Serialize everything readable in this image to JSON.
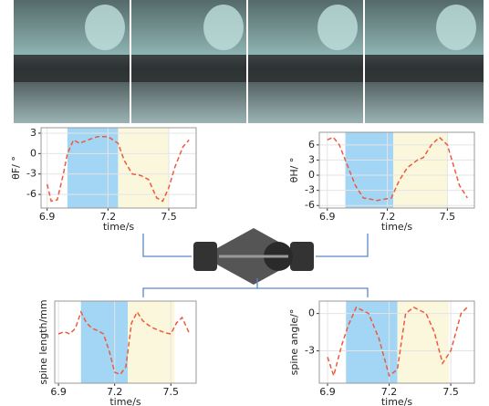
{
  "chart_data": [
    {
      "type": "line",
      "ylabel": "θF/ °",
      "xlabel": "time/s",
      "grid": true,
      "x": [
        6.9,
        6.92,
        6.95,
        6.98,
        7.0,
        7.03,
        7.06,
        7.1,
        7.15,
        7.2,
        7.25,
        7.28,
        7.32,
        7.36,
        7.4,
        7.44,
        7.47,
        7.5,
        7.53,
        7.57,
        7.6
      ],
      "series": [
        {
          "color": "#ee5a3c",
          "values": [
            -4.5,
            -7,
            -6.8,
            -3,
            0,
            2,
            1.5,
            2,
            2.5,
            2.5,
            1.5,
            -1,
            -3,
            -3.2,
            -3.8,
            -6.5,
            -7,
            -5,
            -2,
            1,
            2
          ]
        }
      ],
      "spans": [
        {
          "from": 7.0,
          "to": 7.25,
          "color": "#a3d5f5"
        },
        {
          "from": 7.25,
          "to": 7.5,
          "color": "#fbf7dc"
        }
      ],
      "xlim": [
        6.87,
        7.635
      ],
      "ylim": [
        -8,
        3.8
      ],
      "xticks": [
        6.9,
        7.2,
        7.5
      ],
      "yticks": [
        3,
        0,
        -3,
        -6
      ]
    },
    {
      "type": "line",
      "ylabel": "θH/ °",
      "xlabel": "time/s",
      "grid": true,
      "x": [
        6.9,
        6.93,
        6.96,
        7.0,
        7.04,
        7.08,
        7.15,
        7.22,
        7.26,
        7.3,
        7.35,
        7.38,
        7.42,
        7.46,
        7.5,
        7.53,
        7.56,
        7.6
      ],
      "series": [
        {
          "color": "#ee5a3c",
          "values": [
            7,
            7.5,
            6,
            2,
            -2,
            -4.5,
            -5,
            -4.5,
            -1,
            1.5,
            3,
            3.5,
            6,
            7.5,
            6,
            2,
            -2,
            -4.5
          ]
        }
      ],
      "spans": [
        {
          "from": 6.99,
          "to": 7.23,
          "color": "#a3d5f5"
        },
        {
          "from": 7.23,
          "to": 7.5,
          "color": "#fbf7dc"
        }
      ],
      "xlim": [
        6.86,
        7.635
      ],
      "ylim": [
        -6.5,
        8.5
      ],
      "xticks": [
        6.9,
        7.2,
        7.5
      ],
      "yticks": [
        6,
        3,
        0,
        -3,
        -6
      ]
    },
    {
      "type": "line",
      "ylabel": "spine length/mm",
      "xlabel": "time/s",
      "grid": true,
      "x": [
        6.9,
        6.93,
        6.96,
        6.99,
        7.02,
        7.05,
        7.08,
        7.11,
        7.14,
        7.17,
        7.2,
        7.23,
        7.26,
        7.29,
        7.32,
        7.35,
        7.38,
        7.41,
        7.44,
        7.47,
        7.5,
        7.53,
        7.56,
        7.6
      ],
      "series": [
        {
          "color": "#ee5a3c",
          "values": [
            6,
            6.2,
            6,
            6.5,
            8,
            7,
            6.5,
            6.3,
            6,
            4.5,
            2.5,
            2.3,
            3,
            7,
            8,
            7.2,
            6.8,
            6.5,
            6.3,
            6.1,
            6,
            7,
            7.5,
            6
          ]
        }
      ],
      "spans": [
        {
          "from": 7.02,
          "to": 7.27,
          "color": "#a3d5f5"
        },
        {
          "from": 7.27,
          "to": 7.52,
          "color": "#fbf7dc"
        }
      ],
      "xlim": [
        6.88,
        7.635
      ],
      "ylim": [
        1.5,
        9
      ],
      "xticks": [
        6.9,
        7.2,
        7.5
      ]
    },
    {
      "type": "line",
      "ylabel": "spine angle/°",
      "xlabel": "time/s",
      "grid": true,
      "x": [
        6.9,
        6.93,
        6.97,
        7.0,
        7.04,
        7.1,
        7.15,
        7.2,
        7.24,
        7.28,
        7.32,
        7.38,
        7.42,
        7.46,
        7.5,
        7.55,
        7.58
      ],
      "series": [
        {
          "color": "#ee5a3c",
          "values": [
            -3.5,
            -5,
            -2.5,
            -1,
            0.5,
            0,
            -2,
            -5,
            -4.5,
            0,
            0.5,
            0,
            -1.5,
            -4,
            -3,
            0,
            0.5
          ]
        }
      ],
      "spans": [
        {
          "from": 6.99,
          "to": 7.24,
          "color": "#a3d5f5"
        },
        {
          "from": 7.24,
          "to": 7.49,
          "color": "#fbf7dc"
        }
      ],
      "xlim": [
        6.86,
        7.615
      ],
      "ylim": [
        -5.6,
        1
      ],
      "xticks": [
        6.9,
        7.2,
        7.5
      ],
      "yticks": [
        0,
        -3
      ]
    }
  ]
}
